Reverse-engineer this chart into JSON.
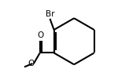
{
  "bg_color": "#ffffff",
  "bond_color": "#000000",
  "text_color": "#000000",
  "line_width": 1.5,
  "font_size": 7.5,
  "figsize": [
    1.64,
    1.02
  ],
  "dpi": 100,
  "br_label": "Br",
  "o_label": "O",
  "o2_label": "O"
}
